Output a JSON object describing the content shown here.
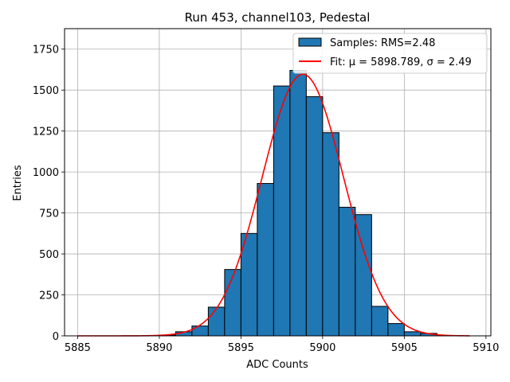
{
  "chart_data": {
    "type": "bar",
    "title": "Run 453, channel103, Pedestal",
    "xlabel": "ADC Counts",
    "ylabel": "Entries",
    "xlim": [
      5884.2,
      5910.3
    ],
    "ylim": [
      0,
      1875
    ],
    "xticks": [
      5885,
      5890,
      5895,
      5900,
      5905,
      5910
    ],
    "yticks": [
      0,
      250,
      500,
      750,
      1000,
      1250,
      1500,
      1750
    ],
    "grid": true,
    "legend_position": "top-right",
    "bin_width": 1,
    "bins": [
      {
        "x": 5890,
        "value": 5
      },
      {
        "x": 5891,
        "value": 25
      },
      {
        "x": 5892,
        "value": 60
      },
      {
        "x": 5893,
        "value": 175
      },
      {
        "x": 5894,
        "value": 405
      },
      {
        "x": 5895,
        "value": 625
      },
      {
        "x": 5896,
        "value": 930
      },
      {
        "x": 5897,
        "value": 1525
      },
      {
        "x": 5898,
        "value": 1620
      },
      {
        "x": 5899,
        "value": 1460
      },
      {
        "x": 5900,
        "value": 1240
      },
      {
        "x": 5901,
        "value": 785
      },
      {
        "x": 5902,
        "value": 740
      },
      {
        "x": 5903,
        "value": 180
      },
      {
        "x": 5904,
        "value": 75
      },
      {
        "x": 5905,
        "value": 25
      },
      {
        "x": 5906,
        "value": 15
      }
    ],
    "fit": {
      "mu": 5898.789,
      "sigma": 2.49,
      "x_range": [
        5885,
        5909
      ],
      "peak": 1597
    },
    "series": [
      {
        "name": "Samples: RMS=2.48",
        "color": "#1f77b4"
      },
      {
        "name": "Fit: μ = 5898.789, σ = 2.49",
        "color": "#ff0000"
      }
    ]
  }
}
